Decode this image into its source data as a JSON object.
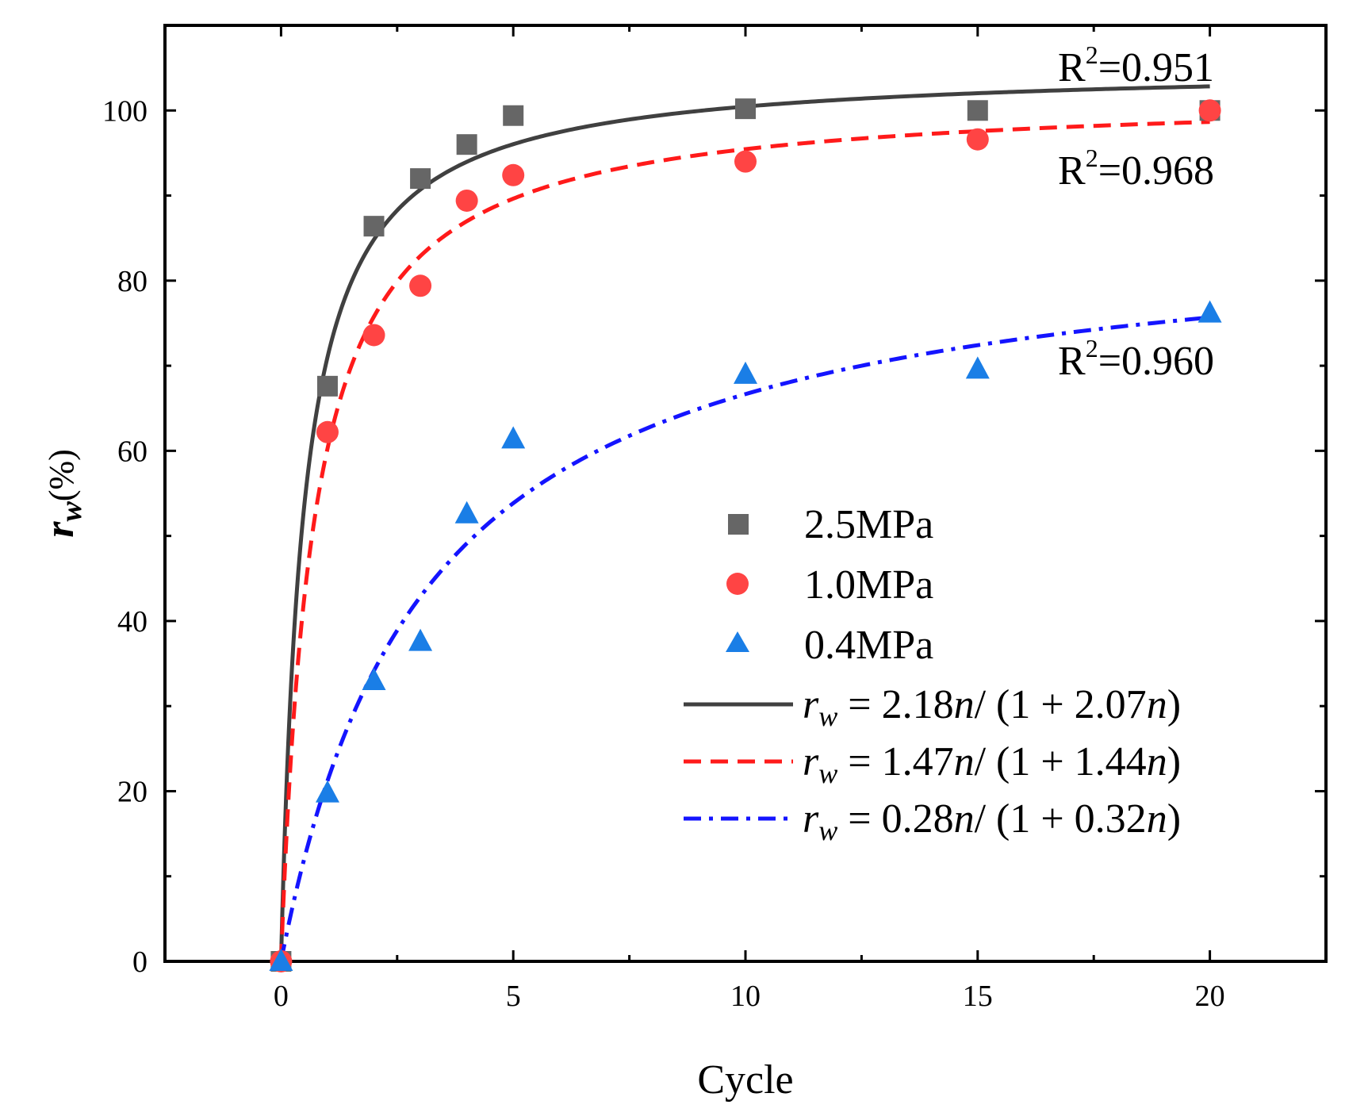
{
  "chart_data": {
    "type": "scatter",
    "title": "",
    "xlabel": "Cycle",
    "ylabel": {
      "var": "r",
      "sub": "w",
      "suffix": "(%)"
    },
    "xlim": [
      -2.5,
      22.5
    ],
    "ylim": [
      0,
      110
    ],
    "x_ticks": [
      0,
      5,
      10,
      15,
      20
    ],
    "y_ticks": [
      0,
      20,
      40,
      60,
      80,
      100
    ],
    "grid": false,
    "legend_position": "center-right",
    "series": [
      {
        "name": "2.5MPa",
        "marker": "square",
        "color": "#666666",
        "points": [
          [
            0,
            0
          ],
          [
            1,
            67.6
          ],
          [
            2,
            86.4
          ],
          [
            3,
            92
          ],
          [
            4,
            96
          ],
          [
            5,
            99.4
          ],
          [
            10,
            100.2
          ],
          [
            15,
            100
          ],
          [
            20,
            100
          ]
        ]
      },
      {
        "name": "1.0MPa",
        "marker": "circle",
        "color": "#ff4444",
        "points": [
          [
            0,
            0
          ],
          [
            1,
            62.2
          ],
          [
            2,
            73.6
          ],
          [
            3,
            79.4
          ],
          [
            4,
            89.4
          ],
          [
            5,
            92.4
          ],
          [
            10,
            94
          ],
          [
            15,
            96.6
          ],
          [
            20,
            100
          ]
        ]
      },
      {
        "name": "0.4MPa",
        "marker": "triangle",
        "color": "#1a7ee6",
        "points": [
          [
            0,
            0
          ],
          [
            1,
            19.8
          ],
          [
            2,
            33
          ],
          [
            3,
            37.6
          ],
          [
            4,
            52.6
          ],
          [
            5,
            61.4
          ],
          [
            10,
            69
          ],
          [
            15,
            69.6
          ],
          [
            20,
            76.2
          ]
        ]
      }
    ],
    "fits": [
      {
        "name": "2.5MPa fit",
        "a": 2.18,
        "b": 2.07,
        "color": "#404040",
        "dash": "solid",
        "eq": {
          "lhs": "r",
          "sub": "w",
          "rest": " = 2.18",
          "n": "n",
          "mid": "/ (1 + 2.07",
          "end": ")"
        },
        "r2_label": "R",
        "r2_sup": "2",
        "r2_value": "=0.951"
      },
      {
        "name": "1.0MPa fit",
        "a": 1.47,
        "b": 1.44,
        "color": "#ff1a1a",
        "dash": "dash",
        "eq": {
          "lhs": "r",
          "sub": "w",
          "rest": " = 1.47",
          "n": "n",
          "mid": "/ (1 + 1.44",
          "end": ")"
        },
        "r2_label": "R",
        "r2_sup": "2",
        "r2_value": "=0.968"
      },
      {
        "name": "0.4MPa fit",
        "a": 0.28,
        "b": 0.32,
        "color": "#1414ff",
        "dash": "dashdot",
        "eq": {
          "lhs": "r",
          "sub": "w",
          "rest": " = 0.28",
          "n": "n",
          "mid": "/ (1 + 0.32",
          "end": ")"
        },
        "r2_label": "R",
        "r2_sup": "2",
        "r2_value": "=0.960"
      }
    ],
    "fit_formula": "r_w = a n / (1 + b n) * 100"
  }
}
